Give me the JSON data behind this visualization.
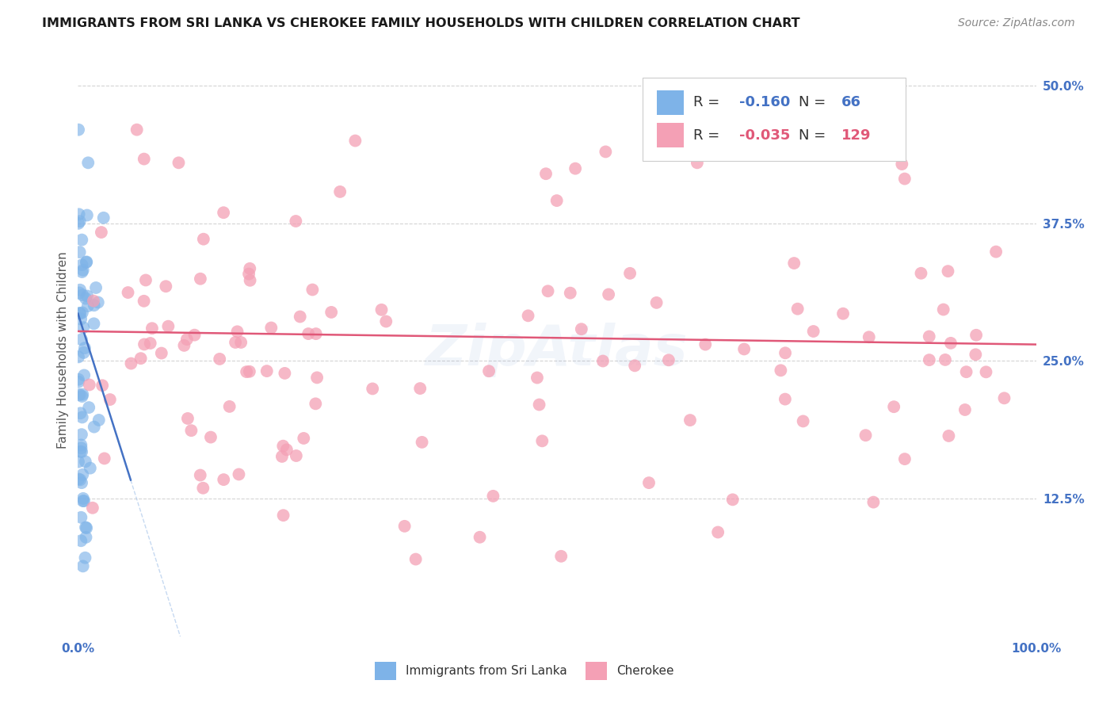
{
  "title": "IMMIGRANTS FROM SRI LANKA VS CHEROKEE FAMILY HOUSEHOLDS WITH CHILDREN CORRELATION CHART",
  "source": "Source: ZipAtlas.com",
  "ylabel": "Family Households with Children",
  "legend_labels": [
    "Immigrants from Sri Lanka",
    "Cherokee"
  ],
  "legend_R": [
    -0.16,
    -0.035
  ],
  "legend_N": [
    66,
    129
  ],
  "blue_dot_color": "#7EB3E8",
  "pink_dot_color": "#F4A0B5",
  "blue_line_color": "#4472C4",
  "pink_line_color": "#E05878",
  "dashed_line_color": "#A0C0E8",
  "title_color": "#1a1a1a",
  "source_color": "#888888",
  "axis_label_color": "#555555",
  "tick_color": "#4472c4",
  "grid_color": "#d0d0d0",
  "background_color": "#ffffff",
  "xlim": [
    0.0,
    1.0
  ],
  "ylim": [
    0.0,
    0.52
  ],
  "yticks": [
    0.0,
    0.125,
    0.25,
    0.375,
    0.5
  ],
  "ytick_labels": [
    "",
    "12.5%",
    "25.0%",
    "37.5%",
    "50.0%"
  ],
  "xticks": [
    0.0,
    0.25,
    0.5,
    0.75,
    1.0
  ],
  "xtick_labels": [
    "0.0%",
    "",
    "",
    "",
    "100.0%"
  ],
  "title_fontsize": 11.5,
  "source_fontsize": 10,
  "axis_label_fontsize": 11,
  "tick_fontsize": 11,
  "legend_fontsize": 13,
  "watermark_text": "ZipAtlas",
  "watermark_color": "#4472c4",
  "watermark_alpha": 0.07
}
